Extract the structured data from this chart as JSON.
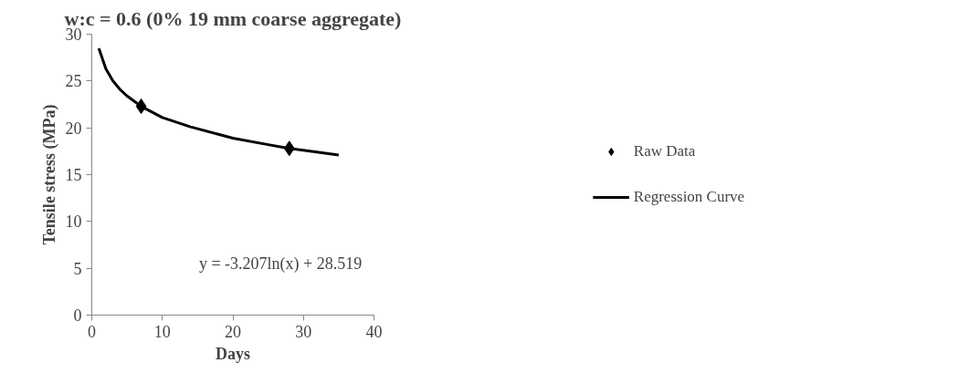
{
  "chart_data": {
    "type": "scatter",
    "title": "w:c = 0.6 (0% 19 mm coarse aggregate)",
    "xlabel": "Days",
    "ylabel": "Tensile stress (MPa)",
    "series": [
      {
        "name": "Raw Data",
        "type": "scatter",
        "color": "#000000",
        "marker": "diamond",
        "x": [
          7,
          28
        ],
        "values": [
          22.3,
          17.8
        ]
      },
      {
        "name": "Regression Curve",
        "type": "line",
        "color": "#000000",
        "line_style": "solid",
        "x": [
          1,
          2,
          3,
          4,
          5,
          7,
          10,
          14,
          20,
          25,
          28,
          30,
          35
        ],
        "values": [
          28.5,
          26.3,
          25.0,
          24.1,
          23.4,
          22.3,
          21.1,
          20.1,
          18.9,
          18.2,
          17.8,
          17.6,
          17.1
        ]
      }
    ],
    "annotations": [
      "y = -3.207ln(x) + 28.519"
    ],
    "xlim": [
      0,
      40
    ],
    "xticks": [
      0,
      10,
      20,
      30,
      40
    ],
    "ylim": [
      0,
      30
    ],
    "yticks": [
      0,
      5,
      10,
      15,
      20,
      25,
      30
    ],
    "grid": false,
    "legend": "right"
  }
}
